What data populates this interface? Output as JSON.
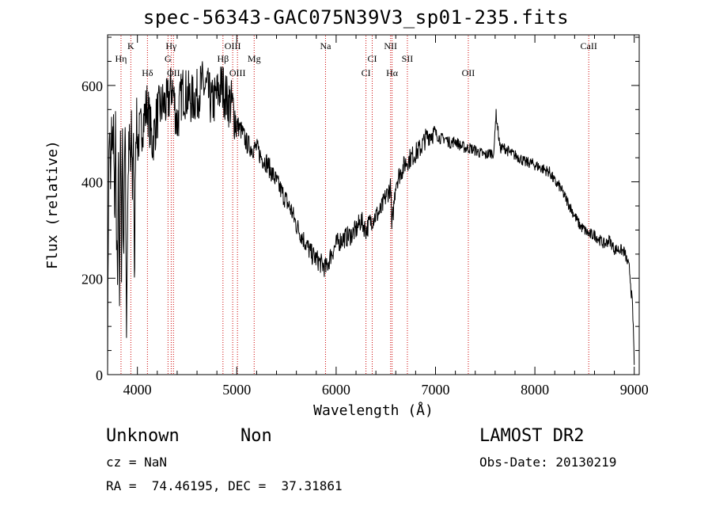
{
  "title": "spec-56343-GAC075N39V3_sp01-235.fits",
  "footer": {
    "class_label": "Unknown",
    "subclass_label": "Non",
    "survey": "LAMOST DR2",
    "cz": "cz = NaN",
    "obs_date": "Obs-Date: 20130219",
    "coords": "RA =  74.46195, DEC =  37.31861"
  },
  "chart_data": {
    "type": "line",
    "title": "spec-56343-GAC075N39V3_sp01-235.fits",
    "xlabel": "Wavelength (Å)",
    "ylabel": "Flux (relative)",
    "xlim": [
      3700,
      9050
    ],
    "ylim": [
      0,
      705
    ],
    "xticks": [
      4000,
      5000,
      6000,
      7000,
      8000,
      9000
    ],
    "yticks": [
      0,
      200,
      400,
      600
    ],
    "grid": false,
    "line_color": "#000000",
    "marker_color": "#cc0000",
    "series": [
      {
        "x": [
          3700,
          3710,
          3720,
          3730,
          3740,
          3750,
          3760,
          3770,
          3780,
          3790,
          3800,
          3810,
          3820,
          3830,
          3840,
          3850,
          3860,
          3870,
          3880,
          3890,
          3900,
          3910,
          3920,
          3930,
          3940,
          3950,
          3960,
          3970,
          3980,
          3990,
          4000,
          4050,
          4100,
          4150,
          4200,
          4250,
          4300,
          4350,
          4400,
          4450,
          4500,
          4550,
          4600,
          4650,
          4700,
          4750,
          4800,
          4850,
          4900,
          4950,
          5000,
          5050,
          5100,
          5150,
          5200,
          5250,
          5300,
          5350,
          5400,
          5450,
          5500,
          5550,
          5600,
          5650,
          5700,
          5750,
          5800,
          5850,
          5900,
          5950,
          6000,
          6050,
          6100,
          6150,
          6200,
          6250,
          6300,
          6350,
          6400,
          6450,
          6500,
          6550,
          6560,
          6600,
          6650,
          6700,
          6750,
          6800,
          6850,
          6900,
          6950,
          7000,
          7050,
          7100,
          7150,
          7200,
          7250,
          7300,
          7350,
          7400,
          7450,
          7500,
          7550,
          7590,
          7600,
          7610,
          7650,
          7700,
          7750,
          7800,
          7850,
          7900,
          7950,
          8000,
          8050,
          8100,
          8150,
          8200,
          8250,
          8300,
          8350,
          8400,
          8450,
          8500,
          8550,
          8600,
          8650,
          8700,
          8750,
          8800,
          8850,
          8900,
          8950,
          8960,
          8970,
          8980,
          8990,
          9000
        ],
        "y": [
          10,
          400,
          520,
          380,
          500,
          480,
          520,
          300,
          500,
          250,
          200,
          480,
          150,
          500,
          240,
          510,
          220,
          460,
          470,
          100,
          300,
          450,
          480,
          420,
          500,
          390,
          520,
          160,
          470,
          540,
          480,
          520,
          560,
          480,
          540,
          560,
          560,
          600,
          520,
          590,
          580,
          570,
          580,
          600,
          590,
          560,
          580,
          600,
          570,
          560,
          520,
          505,
          480,
          470,
          470,
          450,
          440,
          420,
          400,
          380,
          360,
          340,
          310,
          290,
          270,
          250,
          240,
          230,
          220,
          250,
          270,
          280,
          285,
          290,
          300,
          320,
          300,
          320,
          330,
          340,
          370,
          390,
          300,
          400,
          420,
          440,
          450,
          460,
          470,
          490,
          500,
          500,
          490,
          490,
          480,
          485,
          475,
          470,
          470,
          465,
          460,
          455,
          460,
          460,
          520,
          540,
          470,
          470,
          460,
          455,
          450,
          440,
          440,
          435,
          430,
          425,
          420,
          400,
          390,
          370,
          350,
          330,
          310,
          300,
          290,
          290,
          280,
          270,
          280,
          260,
          260,
          255,
          220,
          200,
          170,
          150,
          100,
          20
        ]
      }
    ],
    "line_markers": [
      {
        "label": "Hη",
        "x": 3835,
        "row": 2
      },
      {
        "label": "K",
        "x": 3934,
        "row": 1
      },
      {
        "label": "Hδ",
        "x": 4101,
        "row": 3
      },
      {
        "label": "Hγ",
        "x": 4340,
        "row": 1
      },
      {
        "label": "G",
        "x": 4308,
        "row": 2
      },
      {
        "label": "OII",
        "x": 4363,
        "row": 3
      },
      {
        "label": "Hβ",
        "x": 4861,
        "row": 2
      },
      {
        "label": "OIII",
        "x": 4959,
        "row": 1
      },
      {
        "label": "OIII",
        "x": 5007,
        "row": 3
      },
      {
        "label": "Mg",
        "x": 5175,
        "row": 2
      },
      {
        "label": "Na",
        "x": 5893,
        "row": 1
      },
      {
        "label": "CI",
        "x": 6300,
        "row": 3
      },
      {
        "label": "CI",
        "x": 6363,
        "row": 2
      },
      {
        "label": "NII",
        "x": 6548,
        "row": 1
      },
      {
        "label": "Hα",
        "x": 6563,
        "row": 3
      },
      {
        "label": "SII",
        "x": 6717,
        "row": 2
      },
      {
        "label": "OII",
        "x": 7330,
        "row": 3
      },
      {
        "label": "CaII",
        "x": 8542,
        "row": 1
      }
    ]
  }
}
